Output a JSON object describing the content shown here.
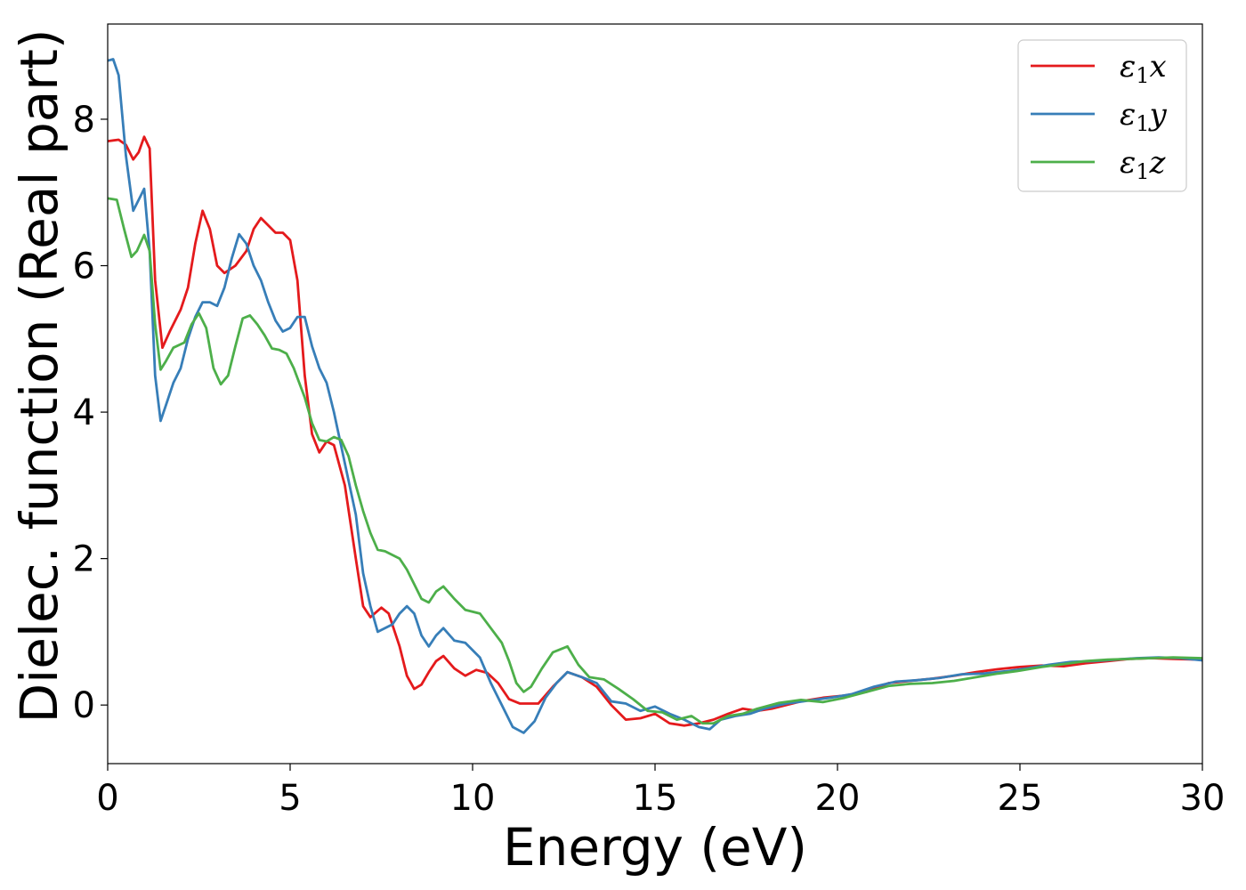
{
  "chart_data": {
    "type": "line",
    "title": "",
    "xlabel": "Energy (eV)",
    "ylabel": "Dielec. function (Real part)",
    "xlim": [
      0,
      30
    ],
    "ylim": [
      -0.8,
      9.3
    ],
    "xticks": [
      0,
      5,
      10,
      15,
      20,
      25,
      30
    ],
    "yticks": [
      0,
      2,
      4,
      6,
      8
    ],
    "grid": false,
    "legend_position": "top-right",
    "series": [
      {
        "name": "ε₁x",
        "legend": {
          "base": "ε",
          "sub": "1",
          "axis": "x"
        },
        "color": "#e41a1c",
        "points": [
          [
            0,
            7.7
          ],
          [
            0.3,
            7.72
          ],
          [
            0.5,
            7.65
          ],
          [
            0.7,
            7.45
          ],
          [
            0.85,
            7.55
          ],
          [
            1.0,
            7.76
          ],
          [
            1.15,
            7.6
          ],
          [
            1.3,
            5.8
          ],
          [
            1.5,
            4.88
          ],
          [
            1.7,
            5.1
          ],
          [
            2.0,
            5.4
          ],
          [
            2.2,
            5.7
          ],
          [
            2.4,
            6.3
          ],
          [
            2.6,
            6.75
          ],
          [
            2.8,
            6.5
          ],
          [
            3.0,
            6.0
          ],
          [
            3.2,
            5.9
          ],
          [
            3.5,
            6.0
          ],
          [
            3.8,
            6.2
          ],
          [
            4.0,
            6.5
          ],
          [
            4.2,
            6.65
          ],
          [
            4.4,
            6.55
          ],
          [
            4.6,
            6.45
          ],
          [
            4.8,
            6.45
          ],
          [
            5.0,
            6.35
          ],
          [
            5.2,
            5.8
          ],
          [
            5.4,
            4.5
          ],
          [
            5.6,
            3.7
          ],
          [
            5.8,
            3.45
          ],
          [
            6.0,
            3.6
          ],
          [
            6.2,
            3.55
          ],
          [
            6.5,
            3.0
          ],
          [
            6.8,
            2.0
          ],
          [
            7.0,
            1.35
          ],
          [
            7.2,
            1.2
          ],
          [
            7.5,
            1.33
          ],
          [
            7.7,
            1.25
          ],
          [
            8.0,
            0.8
          ],
          [
            8.2,
            0.4
          ],
          [
            8.4,
            0.22
          ],
          [
            8.6,
            0.28
          ],
          [
            8.8,
            0.45
          ],
          [
            9.0,
            0.6
          ],
          [
            9.2,
            0.67
          ],
          [
            9.5,
            0.5
          ],
          [
            9.8,
            0.4
          ],
          [
            10.1,
            0.48
          ],
          [
            10.4,
            0.44
          ],
          [
            10.7,
            0.3
          ],
          [
            11.0,
            0.08
          ],
          [
            11.3,
            0.02
          ],
          [
            11.8,
            0.02
          ],
          [
            12.2,
            0.25
          ],
          [
            12.6,
            0.45
          ],
          [
            13.0,
            0.38
          ],
          [
            13.4,
            0.25
          ],
          [
            13.8,
            0.0
          ],
          [
            14.2,
            -0.2
          ],
          [
            14.6,
            -0.18
          ],
          [
            15.0,
            -0.12
          ],
          [
            15.4,
            -0.25
          ],
          [
            15.8,
            -0.28
          ],
          [
            16.2,
            -0.25
          ],
          [
            16.6,
            -0.2
          ],
          [
            17.0,
            -0.12
          ],
          [
            17.4,
            -0.05
          ],
          [
            17.8,
            -0.08
          ],
          [
            18.2,
            -0.05
          ],
          [
            18.6,
            0.0
          ],
          [
            19.0,
            0.05
          ],
          [
            19.6,
            0.1
          ],
          [
            20.2,
            0.13
          ],
          [
            20.8,
            0.18
          ],
          [
            21.4,
            0.3
          ],
          [
            22.0,
            0.33
          ],
          [
            22.6,
            0.36
          ],
          [
            23.2,
            0.4
          ],
          [
            23.8,
            0.45
          ],
          [
            24.4,
            0.49
          ],
          [
            25.0,
            0.52
          ],
          [
            25.6,
            0.54
          ],
          [
            26.2,
            0.53
          ],
          [
            26.8,
            0.57
          ],
          [
            27.4,
            0.6
          ],
          [
            28.0,
            0.63
          ],
          [
            28.6,
            0.64
          ],
          [
            29.2,
            0.63
          ],
          [
            30.0,
            0.62
          ]
        ]
      },
      {
        "name": "ε₁y",
        "legend": {
          "base": "ε",
          "sub": "1",
          "axis": "y"
        },
        "color": "#377eb8",
        "points": [
          [
            0,
            8.8
          ],
          [
            0.15,
            8.82
          ],
          [
            0.3,
            8.6
          ],
          [
            0.5,
            7.5
          ],
          [
            0.7,
            6.75
          ],
          [
            0.85,
            6.9
          ],
          [
            1.0,
            7.05
          ],
          [
            1.15,
            6.2
          ],
          [
            1.3,
            4.5
          ],
          [
            1.45,
            3.88
          ],
          [
            1.6,
            4.1
          ],
          [
            1.8,
            4.4
          ],
          [
            2.0,
            4.6
          ],
          [
            2.2,
            5.0
          ],
          [
            2.4,
            5.3
          ],
          [
            2.6,
            5.5
          ],
          [
            2.8,
            5.5
          ],
          [
            3.0,
            5.45
          ],
          [
            3.2,
            5.7
          ],
          [
            3.4,
            6.1
          ],
          [
            3.6,
            6.43
          ],
          [
            3.8,
            6.3
          ],
          [
            4.0,
            6.0
          ],
          [
            4.2,
            5.8
          ],
          [
            4.4,
            5.5
          ],
          [
            4.6,
            5.25
          ],
          [
            4.8,
            5.1
          ],
          [
            5.0,
            5.15
          ],
          [
            5.2,
            5.3
          ],
          [
            5.4,
            5.3
          ],
          [
            5.6,
            4.9
          ],
          [
            5.8,
            4.6
          ],
          [
            6.0,
            4.4
          ],
          [
            6.2,
            4.0
          ],
          [
            6.5,
            3.3
          ],
          [
            6.8,
            2.6
          ],
          [
            7.0,
            1.8
          ],
          [
            7.2,
            1.35
          ],
          [
            7.4,
            1.0
          ],
          [
            7.6,
            1.05
          ],
          [
            7.8,
            1.1
          ],
          [
            8.0,
            1.25
          ],
          [
            8.2,
            1.35
          ],
          [
            8.4,
            1.25
          ],
          [
            8.6,
            0.95
          ],
          [
            8.8,
            0.8
          ],
          [
            9.0,
            0.95
          ],
          [
            9.2,
            1.05
          ],
          [
            9.5,
            0.88
          ],
          [
            9.8,
            0.85
          ],
          [
            10.2,
            0.65
          ],
          [
            10.5,
            0.3
          ],
          [
            10.8,
            0.0
          ],
          [
            11.1,
            -0.3
          ],
          [
            11.4,
            -0.38
          ],
          [
            11.7,
            -0.22
          ],
          [
            12.0,
            0.1
          ],
          [
            12.3,
            0.3
          ],
          [
            12.6,
            0.45
          ],
          [
            13.0,
            0.38
          ],
          [
            13.4,
            0.3
          ],
          [
            13.8,
            0.05
          ],
          [
            14.2,
            0.02
          ],
          [
            14.6,
            -0.08
          ],
          [
            15.0,
            -0.02
          ],
          [
            15.4,
            -0.12
          ],
          [
            15.8,
            -0.2
          ],
          [
            16.2,
            -0.3
          ],
          [
            16.5,
            -0.33
          ],
          [
            16.8,
            -0.2
          ],
          [
            17.2,
            -0.15
          ],
          [
            17.6,
            -0.12
          ],
          [
            18.0,
            -0.05
          ],
          [
            18.6,
            0.02
          ],
          [
            19.2,
            0.06
          ],
          [
            19.8,
            0.1
          ],
          [
            20.4,
            0.15
          ],
          [
            21.0,
            0.25
          ],
          [
            21.6,
            0.32
          ],
          [
            22.2,
            0.34
          ],
          [
            22.8,
            0.37
          ],
          [
            23.4,
            0.42
          ],
          [
            24.0,
            0.43
          ],
          [
            24.6,
            0.46
          ],
          [
            25.2,
            0.5
          ],
          [
            25.8,
            0.55
          ],
          [
            26.4,
            0.59
          ],
          [
            27.0,
            0.6
          ],
          [
            27.6,
            0.62
          ],
          [
            28.2,
            0.64
          ],
          [
            28.8,
            0.65
          ],
          [
            29.4,
            0.64
          ],
          [
            30.0,
            0.61
          ]
        ]
      },
      {
        "name": "ε₁z",
        "legend": {
          "base": "ε",
          "sub": "1",
          "axis": "z"
        },
        "color": "#4daf4a",
        "points": [
          [
            0,
            6.92
          ],
          [
            0.25,
            6.9
          ],
          [
            0.45,
            6.5
          ],
          [
            0.65,
            6.12
          ],
          [
            0.8,
            6.2
          ],
          [
            1.0,
            6.42
          ],
          [
            1.15,
            6.2
          ],
          [
            1.3,
            5.2
          ],
          [
            1.45,
            4.58
          ],
          [
            1.6,
            4.7
          ],
          [
            1.8,
            4.88
          ],
          [
            2.1,
            4.95
          ],
          [
            2.3,
            5.2
          ],
          [
            2.5,
            5.35
          ],
          [
            2.7,
            5.15
          ],
          [
            2.9,
            4.6
          ],
          [
            3.1,
            4.38
          ],
          [
            3.3,
            4.5
          ],
          [
            3.5,
            4.9
          ],
          [
            3.7,
            5.28
          ],
          [
            3.9,
            5.32
          ],
          [
            4.1,
            5.2
          ],
          [
            4.3,
            5.05
          ],
          [
            4.5,
            4.87
          ],
          [
            4.7,
            4.85
          ],
          [
            4.9,
            4.8
          ],
          [
            5.1,
            4.6
          ],
          [
            5.4,
            4.2
          ],
          [
            5.6,
            3.85
          ],
          [
            5.8,
            3.62
          ],
          [
            6.0,
            3.6
          ],
          [
            6.2,
            3.66
          ],
          [
            6.4,
            3.62
          ],
          [
            6.6,
            3.4
          ],
          [
            6.8,
            3.0
          ],
          [
            7.0,
            2.65
          ],
          [
            7.2,
            2.35
          ],
          [
            7.4,
            2.12
          ],
          [
            7.6,
            2.1
          ],
          [
            7.8,
            2.05
          ],
          [
            8.0,
            2.0
          ],
          [
            8.2,
            1.85
          ],
          [
            8.4,
            1.65
          ],
          [
            8.6,
            1.45
          ],
          [
            8.8,
            1.4
          ],
          [
            9.0,
            1.55
          ],
          [
            9.2,
            1.62
          ],
          [
            9.5,
            1.45
          ],
          [
            9.8,
            1.3
          ],
          [
            10.2,
            1.25
          ],
          [
            10.5,
            1.05
          ],
          [
            10.8,
            0.85
          ],
          [
            11.0,
            0.6
          ],
          [
            11.2,
            0.3
          ],
          [
            11.4,
            0.18
          ],
          [
            11.6,
            0.25
          ],
          [
            11.9,
            0.5
          ],
          [
            12.2,
            0.72
          ],
          [
            12.6,
            0.8
          ],
          [
            12.9,
            0.55
          ],
          [
            13.2,
            0.38
          ],
          [
            13.6,
            0.35
          ],
          [
            14.0,
            0.22
          ],
          [
            14.4,
            0.08
          ],
          [
            14.8,
            -0.08
          ],
          [
            15.2,
            -0.1
          ],
          [
            15.6,
            -0.2
          ],
          [
            16.0,
            -0.15
          ],
          [
            16.3,
            -0.25
          ],
          [
            16.6,
            -0.25
          ],
          [
            17.0,
            -0.15
          ],
          [
            17.4,
            -0.12
          ],
          [
            17.8,
            -0.05
          ],
          [
            18.4,
            0.03
          ],
          [
            19.0,
            0.07
          ],
          [
            19.6,
            0.04
          ],
          [
            20.2,
            0.1
          ],
          [
            20.8,
            0.18
          ],
          [
            21.4,
            0.26
          ],
          [
            22.0,
            0.29
          ],
          [
            22.6,
            0.3
          ],
          [
            23.2,
            0.33
          ],
          [
            23.8,
            0.38
          ],
          [
            24.4,
            0.43
          ],
          [
            25.0,
            0.47
          ],
          [
            25.6,
            0.52
          ],
          [
            26.2,
            0.56
          ],
          [
            26.8,
            0.6
          ],
          [
            27.4,
            0.62
          ],
          [
            28.0,
            0.63
          ],
          [
            28.6,
            0.64
          ],
          [
            29.2,
            0.65
          ],
          [
            30.0,
            0.64
          ]
        ]
      }
    ]
  }
}
